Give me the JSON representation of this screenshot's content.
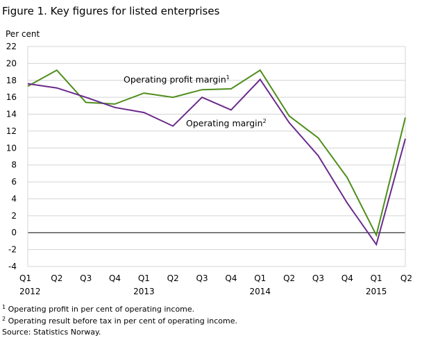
{
  "chart_data": {
    "type": "line",
    "title": "Figure 1. Key figures for listed enterprises",
    "ylabel": "Per cent",
    "ylim": [
      -4,
      22
    ],
    "yticks": [
      -4,
      -2,
      0,
      2,
      4,
      6,
      8,
      10,
      12,
      14,
      16,
      18,
      20,
      22
    ],
    "grid": true,
    "categories": [
      "Q1",
      "Q2",
      "Q3",
      "Q4",
      "Q1",
      "Q2",
      "Q3",
      "Q4",
      "Q1",
      "Q2",
      "Q3",
      "Q4",
      "Q1",
      "Q2"
    ],
    "years": [
      {
        "label": "2012",
        "index": 0
      },
      {
        "label": "2013",
        "index": 4
      },
      {
        "label": "2014",
        "index": 8
      },
      {
        "label": "2015",
        "index": 12
      }
    ],
    "series": [
      {
        "name": "Operating profit margin",
        "footnote_ref": "1",
        "color": "#4e8d1a",
        "values": [
          17.3,
          19.2,
          15.4,
          15.2,
          16.5,
          16.0,
          16.9,
          17.0,
          19.2,
          13.8,
          11.2,
          6.5,
          -0.3,
          13.6
        ]
      },
      {
        "name": "Operating margin",
        "footnote_ref": "2",
        "color": "#6a2a8c",
        "values": [
          17.6,
          17.1,
          16.0,
          14.8,
          14.2,
          12.6,
          16.0,
          14.5,
          18.1,
          13.0,
          9.1,
          3.5,
          -1.4,
          11.1
        ]
      }
    ],
    "footnotes": [
      {
        "ref": "1",
        "text": " Operating profit in per cent of operating income."
      },
      {
        "ref": "2",
        "text": " Operating result before tax in per cent of operating income."
      }
    ],
    "source": "Source: Statistics Norway."
  }
}
